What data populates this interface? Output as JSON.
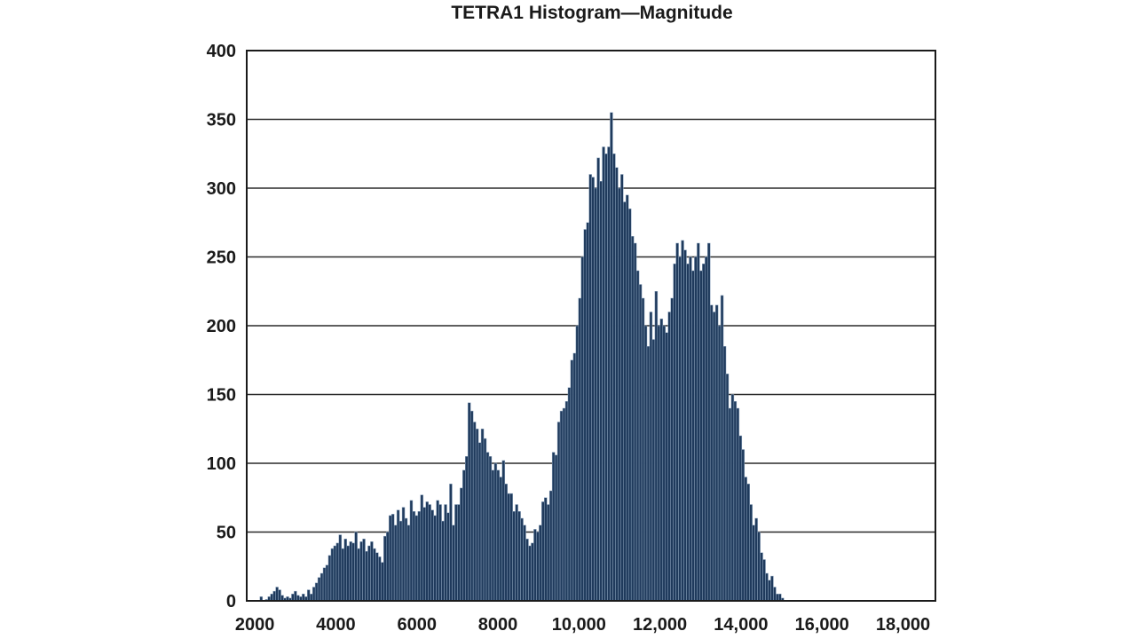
{
  "chart_data": {
    "type": "bar",
    "title": "TETRA1 Histogram—Magnitude",
    "xlabel": "",
    "ylabel": "",
    "xlim": [
      1800,
      18800
    ],
    "ylim": [
      0,
      400
    ],
    "grid": true,
    "bar_color": "#1f3a5c",
    "bar_edge_color": "#8fa6bf",
    "x_ticks": [
      {
        "value": 2000,
        "label": "2000"
      },
      {
        "value": 4000,
        "label": "4000"
      },
      {
        "value": 6000,
        "label": "6000"
      },
      {
        "value": 8000,
        "label": "8000"
      },
      {
        "value": 10000,
        "label": "10,000"
      },
      {
        "value": 12000,
        "label": "12,000"
      },
      {
        "value": 14000,
        "label": "14,000"
      },
      {
        "value": 16000,
        "label": "16,000"
      },
      {
        "value": 18000,
        "label": "18,000"
      }
    ],
    "y_ticks": [
      {
        "value": 0,
        "label": "0"
      },
      {
        "value": 50,
        "label": "50"
      },
      {
        "value": 100,
        "label": "100"
      },
      {
        "value": 150,
        "label": "150"
      },
      {
        "value": 200,
        "label": "200"
      },
      {
        "value": 250,
        "label": "250"
      },
      {
        "value": 300,
        "label": "300"
      },
      {
        "value": 350,
        "label": "350"
      },
      {
        "value": 400,
        "label": "400"
      }
    ],
    "bin_start": 1800,
    "bin_width": 65,
    "values": [
      0,
      0,
      0,
      0,
      0,
      3,
      0,
      1,
      3,
      5,
      7,
      10,
      8,
      4,
      2,
      3,
      2,
      5,
      7,
      4,
      3,
      5,
      3,
      8,
      5,
      10,
      13,
      17,
      20,
      24,
      26,
      33,
      38,
      40,
      42,
      48,
      38,
      45,
      40,
      43,
      42,
      50,
      38,
      43,
      45,
      36,
      40,
      43,
      38,
      35,
      32,
      28,
      47,
      50,
      62,
      63,
      55,
      66,
      58,
      68,
      60,
      55,
      73,
      65,
      62,
      65,
      77,
      68,
      72,
      70,
      66,
      62,
      73,
      70,
      58,
      70,
      64,
      85,
      55,
      70,
      70,
      82,
      95,
      105,
      144,
      138,
      130,
      125,
      115,
      125,
      118,
      108,
      105,
      95,
      100,
      95,
      90,
      102,
      85,
      78,
      78,
      65,
      70,
      65,
      60,
      55,
      45,
      40,
      42,
      52,
      50,
      55,
      72,
      75,
      70,
      80,
      108,
      106,
      130,
      138,
      140,
      145,
      155,
      175,
      180,
      200,
      220,
      250,
      270,
      275,
      310,
      308,
      300,
      322,
      305,
      330,
      325,
      330,
      355,
      325,
      315,
      300,
      310,
      290,
      295,
      285,
      265,
      260,
      240,
      230,
      220,
      200,
      185,
      210,
      190,
      225,
      200,
      205,
      200,
      195,
      210,
      220,
      245,
      260,
      250,
      262,
      255,
      245,
      250,
      240,
      250,
      260,
      240,
      245,
      250,
      260,
      215,
      210,
      215,
      200,
      222,
      185,
      165,
      140,
      150,
      145,
      140,
      120,
      110,
      90,
      85,
      70,
      55,
      60,
      50,
      35,
      30,
      20,
      15,
      18,
      10,
      5,
      5,
      2,
      0,
      0,
      0,
      0,
      0,
      0,
      0,
      0,
      0,
      0,
      0,
      0
    ]
  }
}
